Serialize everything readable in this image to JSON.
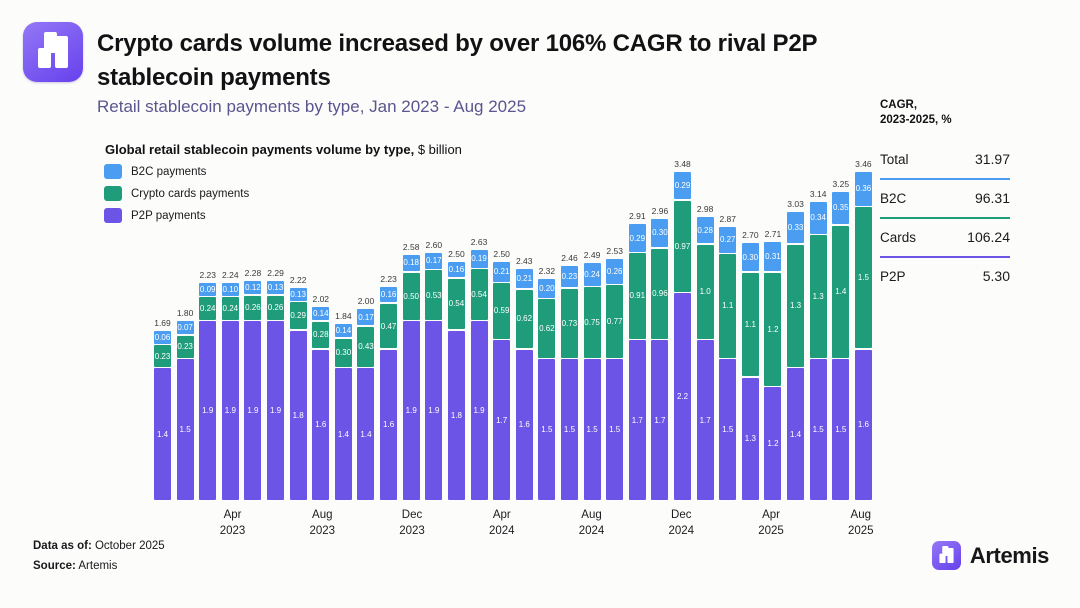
{
  "header": {
    "title": "Crypto cards volume increased by over 106% CAGR to rival P2P stablecoin payments",
    "subtitle": "Retail stablecoin payments by type, Jan 2023 - Aug 2025"
  },
  "chart": {
    "title_bold": "Global retail stablecoin payments volume by type,",
    "title_unit": " $ billion",
    "legend": [
      {
        "label": "B2C payments",
        "color": "#4a9df0"
      },
      {
        "label": "Crypto cards payments",
        "color": "#1f9c7a"
      },
      {
        "label": "P2P payments",
        "color": "#6c55e6"
      }
    ]
  },
  "chart_data": {
    "type": "bar",
    "stacked": true,
    "title": "Global retail stablecoin payments volume by type, $ billion",
    "ylabel": "$ billion",
    "ylim": [
      0,
      3.6
    ],
    "grid": false,
    "legend_position": "top-left",
    "x": [
      "Jan 2023",
      "Feb 2023",
      "Mar 2023",
      "Apr 2023",
      "May 2023",
      "Jun 2023",
      "Jul 2023",
      "Aug 2023",
      "Sep 2023",
      "Oct 2023",
      "Nov 2023",
      "Dec 2023",
      "Jan 2024",
      "Feb 2024",
      "Mar 2024",
      "Apr 2024",
      "May 2024",
      "Jun 2024",
      "Jul 2024",
      "Aug 2024",
      "Sep 2024",
      "Oct 2024",
      "Nov 2024",
      "Dec 2024",
      "Jan 2025",
      "Feb 2025",
      "Mar 2025",
      "Apr 2025",
      "May 2025",
      "Jun 2025",
      "Jul 2025",
      "Aug 2025"
    ],
    "series": [
      {
        "name": "B2C payments",
        "color": "#4a9df0",
        "values": [
          0.06,
          0.07,
          0.09,
          0.1,
          0.12,
          0.13,
          0.13,
          0.14,
          0.14,
          0.17,
          0.16,
          0.18,
          0.17,
          0.16,
          0.19,
          0.21,
          0.21,
          0.2,
          0.23,
          0.24,
          0.26,
          0.29,
          0.3,
          0.29,
          0.28,
          0.27,
          0.3,
          0.31,
          0.33,
          0.34,
          0.35,
          0.36
        ],
        "labels": [
          "0.06",
          "0.07",
          "0.09",
          "0.10",
          "0.12",
          "0.13",
          "0.13",
          "0.14",
          "0.14",
          "0.17",
          "0.16",
          "0.18",
          "0.17",
          "0.16",
          "0.19",
          "0.21",
          "0.21",
          "0.20",
          "0.23",
          "0.24",
          "0.26",
          "0.29",
          "0.30",
          "0.29",
          "0.28",
          "0.27",
          "0.30",
          "0.31",
          "0.33",
          "0.34",
          "0.35",
          "0.36"
        ]
      },
      {
        "name": "Crypto cards payments",
        "color": "#1f9c7a",
        "values": [
          0.23,
          0.23,
          0.24,
          0.24,
          0.26,
          0.26,
          0.29,
          0.28,
          0.3,
          0.43,
          0.47,
          0.5,
          0.53,
          0.54,
          0.54,
          0.59,
          0.62,
          0.62,
          0.73,
          0.75,
          0.77,
          0.91,
          0.96,
          0.97,
          1.0,
          1.1,
          1.1,
          1.2,
          1.3,
          1.3,
          1.4,
          1.5
        ],
        "labels": [
          "0.23",
          "0.23",
          "0.24",
          "0.24",
          "0.26",
          "0.26",
          "0.29",
          "0.28",
          "0.30",
          "0.43",
          "0.47",
          "0.50",
          "0.53",
          "0.54",
          "0.54",
          "0.59",
          "0.62",
          "0.62",
          "0.73",
          "0.75",
          "0.77",
          "0.91",
          "0.96",
          "0.97",
          "1.0",
          "1.1",
          "1.1",
          "1.2",
          "1.3",
          "1.3",
          "1.4",
          "1.5"
        ]
      },
      {
        "name": "P2P payments",
        "color": "#6c55e6",
        "values": [
          1.4,
          1.5,
          1.9,
          1.9,
          1.9,
          1.9,
          1.8,
          1.6,
          1.4,
          1.4,
          1.6,
          1.9,
          1.9,
          1.8,
          1.9,
          1.7,
          1.6,
          1.5,
          1.5,
          1.5,
          1.5,
          1.7,
          1.7,
          2.2,
          1.7,
          1.5,
          1.3,
          1.2,
          1.4,
          1.5,
          1.5,
          1.6
        ],
        "labels": [
          "1.4",
          "1.5",
          "1.9",
          "1.9",
          "1.9",
          "1.9",
          "1.8",
          "1.6",
          "1.4",
          "1.4",
          "1.6",
          "1.9",
          "1.9",
          "1.8",
          "1.9",
          "1.7",
          "1.6",
          "1.5",
          "1.5",
          "1.5",
          "1.5",
          "1.7",
          "1.7",
          "2.2",
          "1.7",
          "1.5",
          "1.3",
          "1.2",
          "1.4",
          "1.5",
          "1.5",
          "1.6"
        ]
      }
    ],
    "totals": [
      1.69,
      1.8,
      2.23,
      2.24,
      2.28,
      2.29,
      2.22,
      2.02,
      1.84,
      2.0,
      2.23,
      2.58,
      2.6,
      2.5,
      2.63,
      2.5,
      2.43,
      2.32,
      2.46,
      2.49,
      2.53,
      2.91,
      2.96,
      3.48,
      2.98,
      2.87,
      2.7,
      2.71,
      3.03,
      3.14,
      3.25,
      3.46
    ],
    "totals_display": [
      "1.69",
      "1.80",
      "2.23",
      "2.24",
      "2.28",
      "2.29",
      "2.22",
      "2.02",
      "1.84",
      "2.00",
      "2.23",
      "2.58",
      "2.60",
      "2.50",
      "2.63",
      "2.50",
      "2.43",
      "2.32",
      "2.46",
      "2.49",
      "2.53",
      "2.91",
      "2.96",
      "3.48",
      "2.98",
      "2.87",
      "2.70",
      "2.71",
      "3.03",
      "3.14",
      "3.25",
      "3.46"
    ],
    "x_ticks": [
      {
        "index": 3,
        "line1": "Apr",
        "line2": "2023"
      },
      {
        "index": 7,
        "line1": "Aug",
        "line2": "2023"
      },
      {
        "index": 11,
        "line1": "Dec",
        "line2": "2023"
      },
      {
        "index": 15,
        "line1": "Apr",
        "line2": "2024"
      },
      {
        "index": 19,
        "line1": "Aug",
        "line2": "2024"
      },
      {
        "index": 23,
        "line1": "Dec",
        "line2": "2024"
      },
      {
        "index": 27,
        "line1": "Apr",
        "line2": "2025"
      },
      {
        "index": 31,
        "line1": "Aug",
        "line2": "2025"
      }
    ]
  },
  "stats_panel": {
    "heading_line1": "CAGR,",
    "heading_line2": "2023-2025, %",
    "rows": [
      {
        "label": "Total",
        "value": "31.97",
        "rule_color": null
      },
      {
        "label": "B2C",
        "value": "96.31",
        "rule_color": "#4a9df0"
      },
      {
        "label": "Cards",
        "value": "106.24",
        "rule_color": "#1f9c7a"
      },
      {
        "label": "P2P",
        "value": "5.30",
        "rule_color": "#6c55e6"
      }
    ]
  },
  "footer": {
    "data_as_of_label": "Data as of:",
    "data_as_of_value": " October 2025",
    "source_label": "Source:",
    "source_value": " Artemis",
    "brand": "Artemis"
  },
  "colors": {
    "b2c": "#4a9df0",
    "cards": "#1f9c7a",
    "p2p": "#6c55e6",
    "background": "#fcfcfa",
    "subtitle": "#5b5590"
  }
}
